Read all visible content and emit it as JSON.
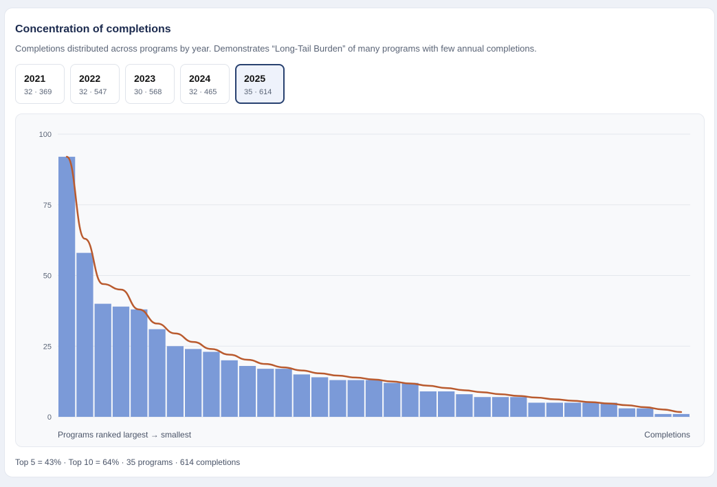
{
  "header": {
    "title": "Concentration of completions",
    "subtitle": "Completions distributed across programs by year. Demonstrates “Long-Tail Burden” of many programs with few annual completions."
  },
  "tabs": [
    {
      "year": "2021",
      "meta": "32 · 369",
      "active": false
    },
    {
      "year": "2022",
      "meta": "32 · 547",
      "active": false
    },
    {
      "year": "2023",
      "meta": "30 · 568",
      "active": false
    },
    {
      "year": "2024",
      "meta": "32 · 465",
      "active": false
    },
    {
      "year": "2025",
      "meta": "35 · 614",
      "active": true
    }
  ],
  "chart_data": {
    "type": "bar",
    "xlabel": "Programs ranked largest → smallest",
    "ylabel": "Completions",
    "ylim": [
      0,
      100
    ],
    "yticks": [
      0,
      25,
      50,
      75,
      100
    ],
    "grid": true,
    "values": [
      92,
      58,
      40,
      39,
      38,
      31,
      25,
      24,
      23,
      20,
      18,
      17,
      17,
      15,
      14,
      13,
      13,
      13,
      12,
      12,
      9,
      9,
      8,
      7,
      7,
      7,
      5,
      5,
      5,
      5,
      5,
      3,
      3,
      1,
      1
    ],
    "trend": [
      92,
      63,
      47,
      45,
      38,
      33,
      29.5,
      26.5,
      24,
      22,
      20.2,
      18.7,
      17.5,
      16.4,
      15.4,
      14.6,
      13.9,
      13.2,
      12.5,
      11.8,
      11.0,
      10.2,
      9.4,
      8.7,
      8.0,
      7.4,
      6.8,
      6.2,
      5.7,
      5.2,
      4.7,
      4.1,
      3.4,
      2.6,
      1.7
    ],
    "bar_color": "#7b9ad8",
    "trend_color": "#b95a2e"
  },
  "footer": {
    "text": "Top 5 = 43% · Top 10 = 64% · 35 programs · 614 completions"
  }
}
